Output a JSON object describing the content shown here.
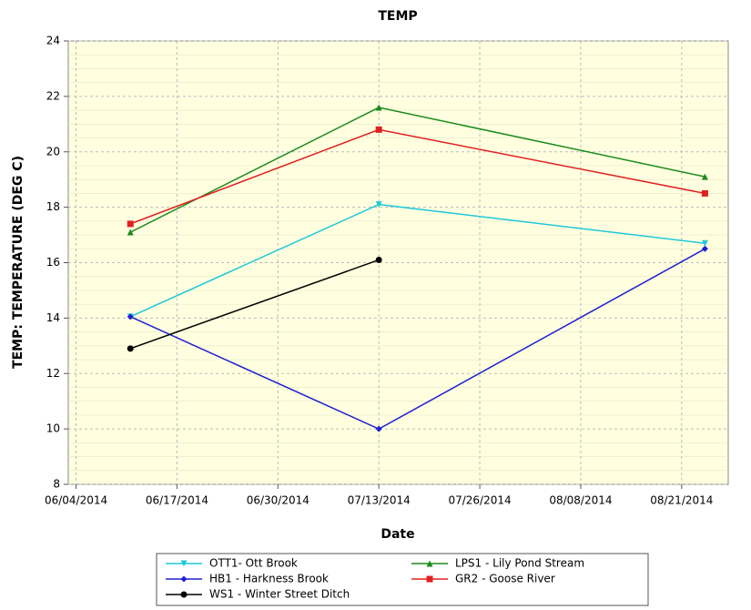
{
  "chart_data": {
    "type": "line",
    "title": "TEMP",
    "x_label": "Date",
    "y_label": "TEMP: TEMPERATURE (DEG C)",
    "x": [
      "2014-06-11",
      "2014-07-13",
      "2014-08-24"
    ],
    "xlim": [
      "2014-06-03",
      "2014-08-27"
    ],
    "xticks": [
      {
        "value": "2014-06-04",
        "label": "06/04/2014"
      },
      {
        "value": "2014-06-17",
        "label": "06/17/2014"
      },
      {
        "value": "2014-06-30",
        "label": "06/30/2014"
      },
      {
        "value": "2014-07-13",
        "label": "07/13/2014"
      },
      {
        "value": "2014-07-26",
        "label": "07/26/2014"
      },
      {
        "value": "2014-08-08",
        "label": "08/08/2014"
      },
      {
        "value": "2014-08-21",
        "label": "08/21/2014"
      }
    ],
    "ylim": [
      8,
      24
    ],
    "yticks": [
      8,
      10,
      12,
      14,
      16,
      18,
      20,
      22,
      24
    ],
    "grid": true,
    "series": [
      {
        "name": "OTT1- Ott Brook",
        "color": "#22c8d8",
        "marker": "triangle-down",
        "values": [
          14.05,
          18.1,
          16.7
        ]
      },
      {
        "name": "LPS1 - Lily Pond Stream",
        "color": "#1a8a1a",
        "marker": "triangle-up",
        "values": [
          17.1,
          21.6,
          19.1
        ]
      },
      {
        "name": "HB1 - Harkness Brook",
        "color": "#2020d0",
        "marker": "diamond",
        "values": [
          14.05,
          10,
          16.5
        ]
      },
      {
        "name": "GR2 - Goose River",
        "color": "#e02020",
        "marker": "square",
        "values": [
          17.4,
          20.8,
          18.5
        ]
      },
      {
        "name": "WS1 - Winter Street Ditch",
        "color": "#000000",
        "marker": "circle",
        "values": [
          12.9,
          16.1,
          null
        ]
      }
    ]
  }
}
